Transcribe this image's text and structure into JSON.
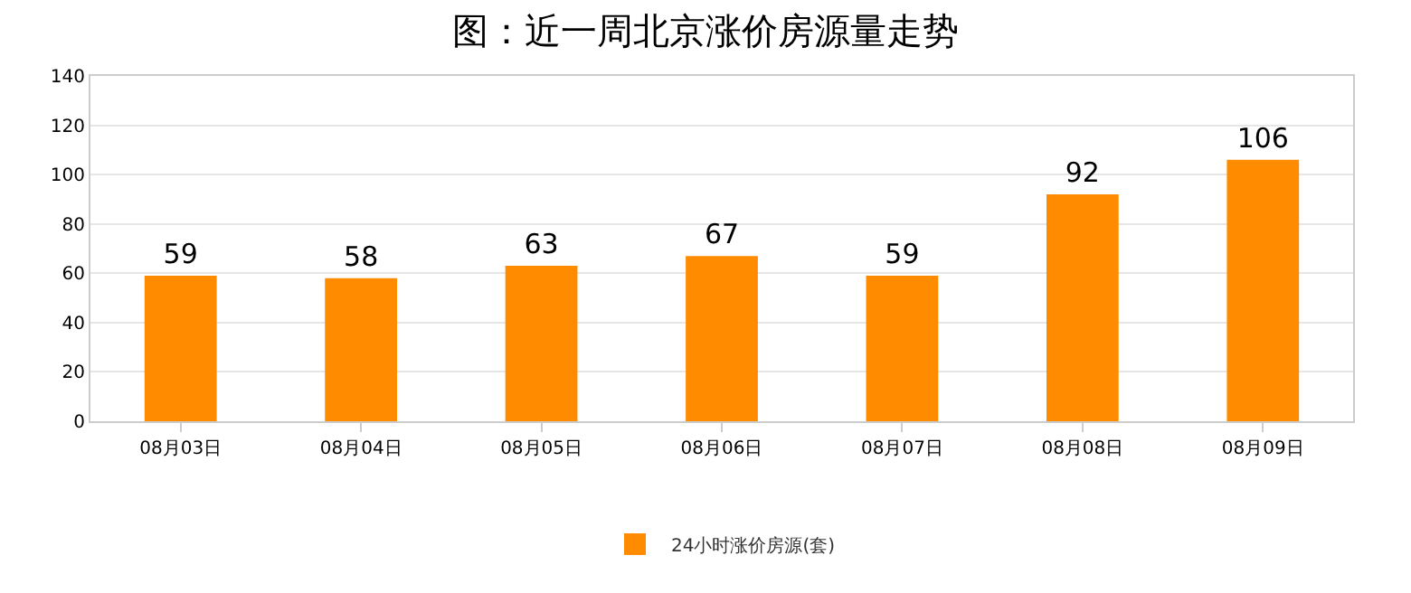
{
  "chart_data": {
    "type": "bar",
    "title": "图：近一周北京涨价房源量走势",
    "categories": [
      "08月03日",
      "08月04日",
      "08月05日",
      "08月06日",
      "08月07日",
      "08月08日",
      "08月09日"
    ],
    "series": [
      {
        "name": "24小时涨价房源(套)",
        "color": "#ff8c00",
        "values": [
          59,
          58,
          63,
          67,
          59,
          92,
          106
        ]
      }
    ],
    "ylim": [
      0,
      140
    ],
    "yticks": [
      0,
      20,
      40,
      60,
      80,
      100,
      120,
      140
    ],
    "grid": "y",
    "legend": "bottom",
    "data_labels": true
  }
}
